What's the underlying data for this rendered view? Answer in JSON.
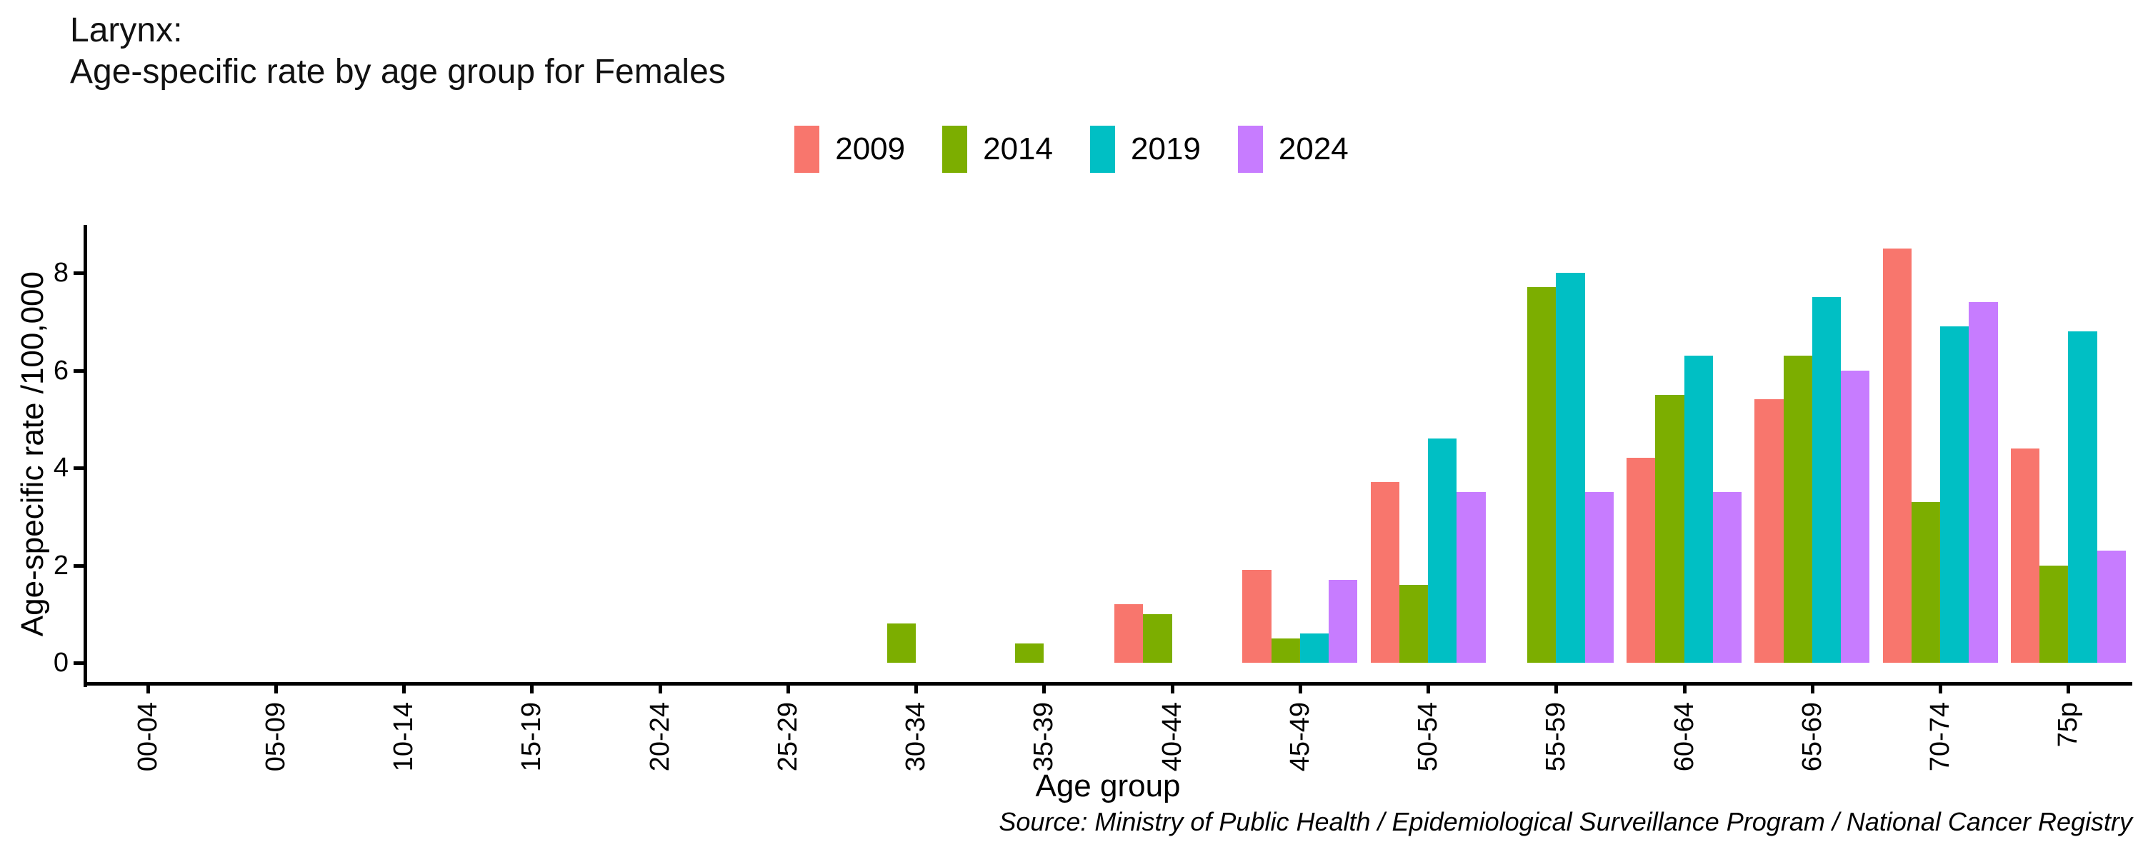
{
  "title": {
    "line1": "Larynx:",
    "line2": "Age-specific rate by age group for Females"
  },
  "axes": {
    "y_label": "Age-specific rate /100,000",
    "x_label": "Age group",
    "y_ticks": [
      0,
      2,
      4,
      6,
      8
    ]
  },
  "source_note": "Source: Ministry of Public Health / Epidemiological Surveillance Program / National Cancer Registry",
  "chart_data": {
    "type": "bar",
    "title": "Larynx: Age-specific rate by age group for Females",
    "xlabel": "Age group",
    "ylabel": "Age-specific rate /100,000",
    "ylim": [
      0,
      9
    ],
    "grid": false,
    "legend_position": "top",
    "categories": [
      "00-04",
      "05-09",
      "10-14",
      "15-19",
      "20-24",
      "25-29",
      "30-34",
      "35-39",
      "40-44",
      "45-49",
      "50-54",
      "55-59",
      "60-64",
      "65-69",
      "70-74",
      "75p"
    ],
    "series": [
      {
        "name": "2009",
        "color": "#F8766D",
        "values": [
          null,
          null,
          null,
          null,
          null,
          null,
          null,
          null,
          1.2,
          1.9,
          3.7,
          null,
          4.2,
          5.4,
          8.5,
          4.4
        ]
      },
      {
        "name": "2014",
        "color": "#7CAE00",
        "values": [
          null,
          null,
          null,
          null,
          null,
          null,
          0.8,
          0.4,
          1.0,
          0.5,
          1.6,
          7.7,
          5.5,
          6.3,
          3.3,
          2.0
        ]
      },
      {
        "name": "2019",
        "color": "#00BFC4",
        "values": [
          null,
          null,
          null,
          null,
          null,
          null,
          null,
          null,
          null,
          0.6,
          4.6,
          8.0,
          6.3,
          7.5,
          6.9,
          6.8
        ]
      },
      {
        "name": "2024",
        "color": "#C77CFF",
        "values": [
          null,
          null,
          null,
          null,
          null,
          null,
          null,
          null,
          null,
          1.7,
          3.5,
          3.5,
          3.5,
          6.0,
          7.4,
          2.3
        ]
      }
    ]
  }
}
